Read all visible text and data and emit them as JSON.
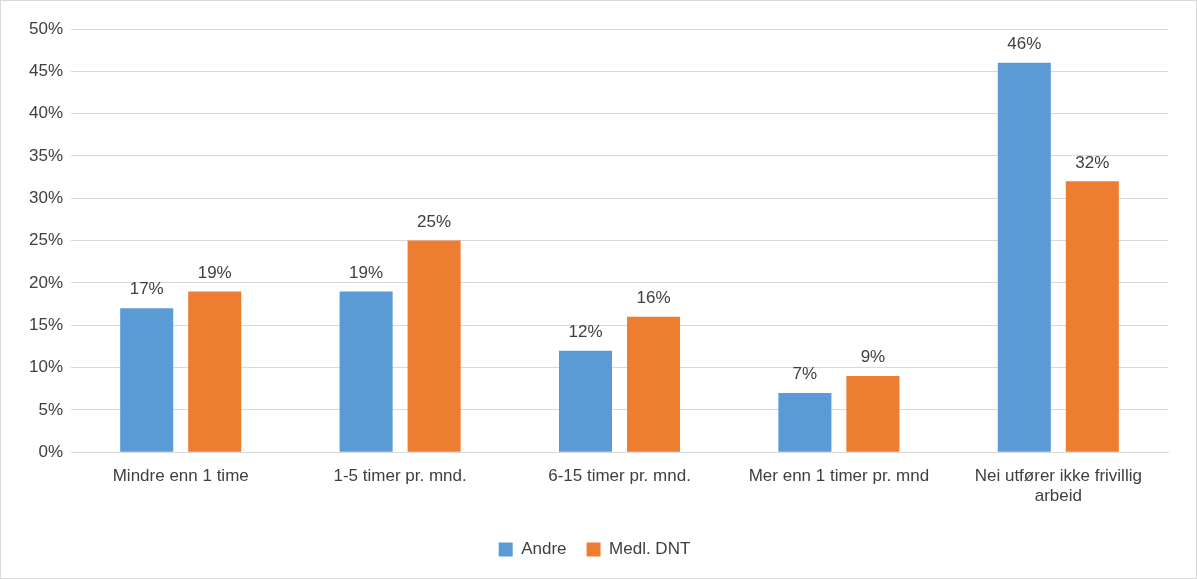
{
  "chart_data": {
    "type": "bar",
    "categories": [
      "Mindre enn 1 time",
      "1-5 timer pr. mnd.",
      "6-15 timer pr. mnd.",
      "Mer enn 1 timer pr. mnd",
      "Nei utfører ikke frivillig arbeid"
    ],
    "series": [
      {
        "name": "Andre",
        "color": "#5b9bd5",
        "values": [
          17,
          19,
          12,
          7,
          46
        ],
        "value_labels": [
          "17%",
          "19%",
          "12%",
          "7%",
          "46%"
        ]
      },
      {
        "name": "Medl. DNT",
        "color": "#ed7d31",
        "values": [
          19,
          25,
          16,
          9,
          32
        ],
        "value_labels": [
          "19%",
          "25%",
          "16%",
          "9%",
          "32%"
        ]
      }
    ],
    "ylim": [
      0,
      50
    ],
    "yticks": [
      {
        "value": 0,
        "label": "0%"
      },
      {
        "value": 5,
        "label": "5%"
      },
      {
        "value": 10,
        "label": "10%"
      },
      {
        "value": 15,
        "label": "15%"
      },
      {
        "value": 20,
        "label": "20%"
      },
      {
        "value": 25,
        "label": "25%"
      },
      {
        "value": 30,
        "label": "30%"
      },
      {
        "value": 35,
        "label": "35%"
      },
      {
        "value": 40,
        "label": "40%"
      },
      {
        "value": 45,
        "label": "45%"
      },
      {
        "value": 50,
        "label": "50%"
      }
    ],
    "grid": "y",
    "legend": "bottom"
  }
}
